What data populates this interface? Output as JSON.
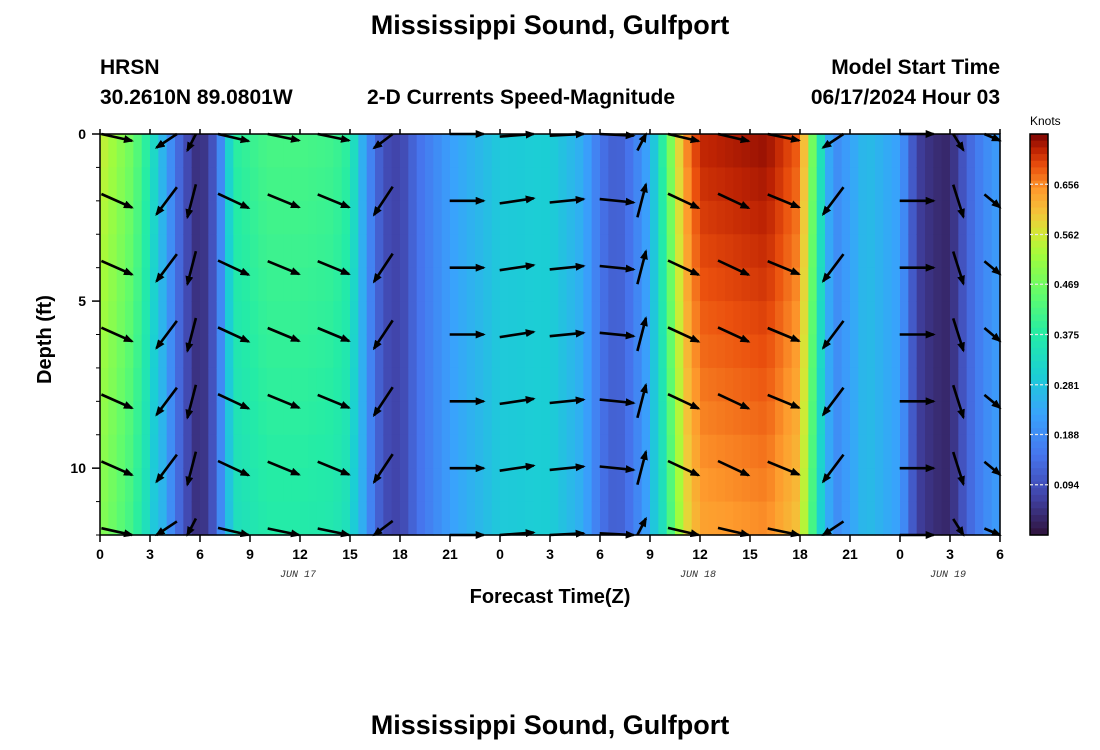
{
  "header": {
    "title": "Mississippi Sound, Gulfport",
    "station": "HRSN",
    "coords": "30.2610N  89.0801W",
    "subtitle": "2-D Currents Speed-Magnitude",
    "model_start_label": "Model Start Time",
    "model_start_value": "06/17/2024 Hour 03",
    "bottom_title": "Mississippi Sound, Gulfport"
  },
  "axes": {
    "ylabel": "Depth (ft)",
    "xlabel": "Forecast Time(Z)",
    "yticks": [
      "0",
      "5",
      "10"
    ],
    "xticks": [
      "0",
      "3",
      "6",
      "9",
      "12",
      "15",
      "18",
      "21",
      "0",
      "3",
      "6",
      "9",
      "12",
      "15",
      "18",
      "21",
      "0",
      "3",
      "6"
    ],
    "dates": [
      "JUN 17",
      "JUN 18",
      "JUN 19"
    ]
  },
  "colorbar": {
    "unit": "Knots",
    "ticks": [
      "0.656",
      "0.562",
      "0.469",
      "0.375",
      "0.281",
      "0.188",
      "0.094"
    ]
  },
  "chart_data": {
    "type": "heatmap",
    "title": "2-D Currents Speed-Magnitude",
    "xlabel": "Forecast Time(Z)",
    "ylabel": "Depth (ft)",
    "x_range_hours_from_jun17_00z": [
      0,
      54
    ],
    "ylim": [
      0,
      12
    ],
    "y_inverted": true,
    "colorscale": "turbo",
    "color_range_knots": [
      0.0,
      0.75
    ],
    "speed_knots_by_hour": [
      [
        0,
        0.56
      ],
      [
        2,
        0.46
      ],
      [
        3,
        0.36
      ],
      [
        4,
        0.22
      ],
      [
        5,
        0.1
      ],
      [
        6,
        0.03
      ],
      [
        7,
        0.12
      ],
      [
        8,
        0.38
      ],
      [
        10,
        0.42
      ],
      [
        12,
        0.42
      ],
      [
        14,
        0.41
      ],
      [
        15,
        0.38
      ],
      [
        16,
        0.2
      ],
      [
        17,
        0.09
      ],
      [
        18,
        0.07
      ],
      [
        19,
        0.14
      ],
      [
        21,
        0.22
      ],
      [
        24,
        0.29
      ],
      [
        27,
        0.3
      ],
      [
        29,
        0.24
      ],
      [
        30,
        0.15
      ],
      [
        31,
        0.11
      ],
      [
        32,
        0.16
      ],
      [
        33,
        0.24
      ],
      [
        34,
        0.43
      ],
      [
        35,
        0.64
      ],
      [
        36,
        0.72
      ],
      [
        40,
        0.74
      ],
      [
        42,
        0.68
      ],
      [
        43,
        0.4
      ],
      [
        44,
        0.18
      ],
      [
        46,
        0.27
      ],
      [
        48,
        0.22
      ],
      [
        49,
        0.07
      ],
      [
        50,
        0.04
      ],
      [
        51,
        0.03
      ],
      [
        52,
        0.12
      ],
      [
        53,
        0.18
      ],
      [
        54,
        0.22
      ]
    ],
    "vectors": {
      "depths_ft": [
        0,
        2,
        4,
        6,
        8,
        10,
        12
      ],
      "columns": [
        {
          "hour": 1,
          "dx": 0.9,
          "dy": 0.4
        },
        {
          "hour": 4,
          "dx": -0.6,
          "dy": 0.8
        },
        {
          "hour": 5.5,
          "dx": -0.25,
          "dy": 0.97
        },
        {
          "hour": 8,
          "dx": 0.9,
          "dy": 0.42
        },
        {
          "hour": 11,
          "dx": 0.92,
          "dy": 0.38
        },
        {
          "hour": 14,
          "dx": 0.92,
          "dy": 0.38
        },
        {
          "hour": 17,
          "dx": -0.55,
          "dy": 0.83
        },
        {
          "hour": 22,
          "dx": 1.0,
          "dy": 0.0
        },
        {
          "hour": 25,
          "dx": 1.0,
          "dy": -0.15
        },
        {
          "hour": 28,
          "dx": 1.0,
          "dy": -0.1
        },
        {
          "hour": 31,
          "dx": 1.0,
          "dy": 0.1
        },
        {
          "hour": 32.5,
          "dx": 0.25,
          "dy": -0.97
        },
        {
          "hour": 35,
          "dx": 0.9,
          "dy": 0.42
        },
        {
          "hour": 38,
          "dx": 0.9,
          "dy": 0.42
        },
        {
          "hour": 41,
          "dx": 0.92,
          "dy": 0.38
        },
        {
          "hour": 44,
          "dx": -0.6,
          "dy": 0.8
        },
        {
          "hour": 49,
          "dx": 1.0,
          "dy": 0.0
        },
        {
          "hour": 51.5,
          "dx": 0.3,
          "dy": 0.95
        },
        {
          "hour": 54,
          "dx": 0.92,
          "dy": 0.38
        }
      ]
    }
  }
}
